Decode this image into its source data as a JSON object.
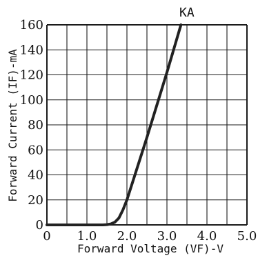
{
  "chart_data": {
    "type": "line",
    "title": "",
    "xlabel": "Forward Voltage (VF)-V",
    "ylabel": "Forward Current (IF)-mA",
    "xlim": [
      0,
      5.0
    ],
    "ylim": [
      0,
      160
    ],
    "xticks": [
      "0",
      "1.0",
      "2.0",
      "3.0",
      "4.0",
      "5.0"
    ],
    "yticks": [
      "0",
      "20",
      "40",
      "60",
      "80",
      "100",
      "120",
      "140",
      "160"
    ],
    "grid": true,
    "series": [
      {
        "name": "KA",
        "x": [
          0,
          1.4,
          1.5,
          1.6,
          1.7,
          1.8,
          1.9,
          2.0,
          2.5,
          3.0,
          3.35
        ],
        "y": [
          0,
          0,
          0.2,
          0.8,
          2.2,
          5.5,
          12,
          20,
          70,
          122,
          160
        ],
        "color": "#222222"
      }
    ]
  }
}
